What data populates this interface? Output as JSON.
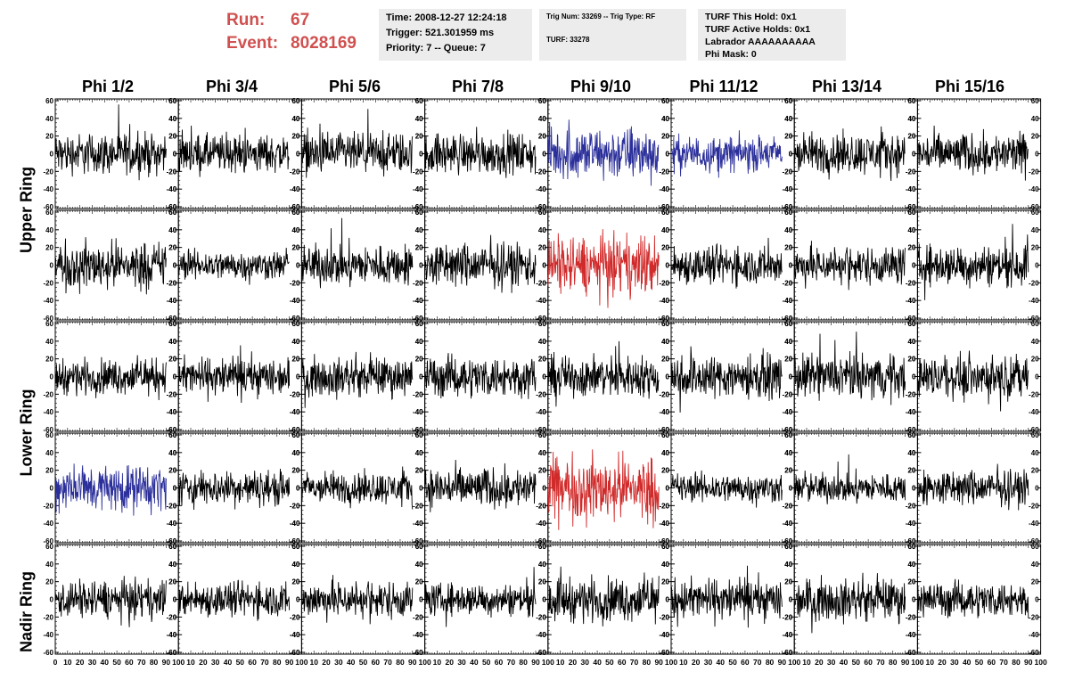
{
  "header": {
    "run_label": "Run:",
    "run_value": "67",
    "event_label": "Event:",
    "event_value": "8028169"
  },
  "info_box_1": {
    "time": "Time: 2008-12-27 12:24:18",
    "trigger": "Trigger: 521.301959 ms",
    "priority": "Priority: 7 -- Queue: 7"
  },
  "info_box_2": {
    "trig": "Trig Num: 33269 -- Trig Type: RF",
    "turf": "TURF: 33278"
  },
  "info_box_3": {
    "hold": "TURF This Hold: 0x1",
    "active": "TURF Active Holds: 0x1",
    "labrador": "Labrador AAAAAAAAAA",
    "phimask": "Phi Mask: 0"
  },
  "columns": [
    "Phi 1/2",
    "Phi 3/4",
    "Phi 5/6",
    "Phi 7/8",
    "Phi 9/10",
    "Phi 11/12",
    "Phi 13/14",
    "Phi 15/16"
  ],
  "row_labels": {
    "upper": "Upper Ring",
    "lower": "Lower Ring",
    "nadir": "Nadir Ring"
  },
  "colors": {
    "black": "#000000",
    "blue": "#2b2f9a",
    "red": "#d02a2a",
    "title": "#d05050",
    "box": "#ececec"
  },
  "chart_data": {
    "type": "line",
    "rows": 5,
    "cols": 8,
    "ylim": [
      -62,
      62
    ],
    "xlim": [
      0,
      100
    ],
    "yticks": [
      -60,
      -40,
      -20,
      0,
      20,
      40,
      60
    ],
    "ytick_labels": [
      "-60",
      "-40",
      "-20",
      "0",
      "20",
      "40",
      "60"
    ],
    "xticks": [
      0,
      10,
      20,
      30,
      40,
      50,
      60,
      70,
      80,
      90,
      100
    ],
    "xtick_labels": [
      "0",
      "10",
      "20",
      "30",
      "40",
      "50",
      "60",
      "70",
      "80",
      "90",
      "100"
    ],
    "samples_per_trace": 260,
    "panels": [
      [
        {
          "color": "black",
          "amp": 14
        },
        {
          "color": "black",
          "amp": 13
        },
        {
          "color": "black",
          "amp": 14
        },
        {
          "color": "black",
          "amp": 14
        },
        {
          "color": "blue",
          "amp": 18
        },
        {
          "color": "blue",
          "amp": 12
        },
        {
          "color": "black",
          "amp": 14
        },
        {
          "color": "black",
          "amp": 14
        }
      ],
      [
        {
          "color": "black",
          "amp": 16
        },
        {
          "color": "black",
          "amp": 10
        },
        {
          "color": "black",
          "amp": 14
        },
        {
          "color": "black",
          "amp": 15
        },
        {
          "color": "red",
          "amp": 20
        },
        {
          "color": "black",
          "amp": 13
        },
        {
          "color": "black",
          "amp": 13
        },
        {
          "color": "black",
          "amp": 14
        }
      ],
      [
        {
          "color": "black",
          "amp": 12
        },
        {
          "color": "black",
          "amp": 13
        },
        {
          "color": "black",
          "amp": 13
        },
        {
          "color": "black",
          "amp": 14
        },
        {
          "color": "black",
          "amp": 14
        },
        {
          "color": "black",
          "amp": 15
        },
        {
          "color": "black",
          "amp": 15
        },
        {
          "color": "black",
          "amp": 14
        }
      ],
      [
        {
          "color": "blue",
          "amp": 16
        },
        {
          "color": "black",
          "amp": 12
        },
        {
          "color": "black",
          "amp": 11
        },
        {
          "color": "black",
          "amp": 14
        },
        {
          "color": "red",
          "amp": 22
        },
        {
          "color": "black",
          "amp": 10
        },
        {
          "color": "black",
          "amp": 10
        },
        {
          "color": "black",
          "amp": 12
        }
      ],
      [
        {
          "color": "black",
          "amp": 13
        },
        {
          "color": "black",
          "amp": 12
        },
        {
          "color": "black",
          "amp": 13
        },
        {
          "color": "black",
          "amp": 11
        },
        {
          "color": "black",
          "amp": 15
        },
        {
          "color": "black",
          "amp": 14
        },
        {
          "color": "black",
          "amp": 14
        },
        {
          "color": "black",
          "amp": 12
        }
      ]
    ]
  }
}
